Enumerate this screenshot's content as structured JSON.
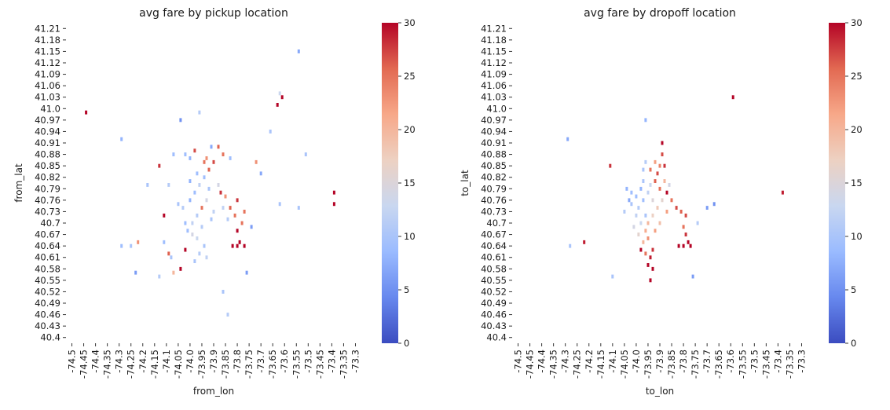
{
  "colors": {
    "scale": [
      "#3b4cc0",
      "#6788ee",
      "#9abbff",
      "#c9d7f0",
      "#edd1c2",
      "#f7a889",
      "#e26952",
      "#b40426"
    ]
  },
  "chart_data": [
    {
      "type": "heatmap",
      "title": "avg fare by pickup location",
      "xlabel": "from_lon",
      "ylabel": "from_lat",
      "x_ticks": [
        "-74.5",
        "-74.45",
        "-74.4",
        "-74.35",
        "-74.3",
        "-74.25",
        "-74.2",
        "-74.15",
        "-74.1",
        "-74.05",
        "-74.0",
        "-73.95",
        "-73.9",
        "-73.85",
        "-73.8",
        "-73.75",
        "-73.7",
        "-73.65",
        "-73.6",
        "-73.55",
        "-73.5",
        "-73.45",
        "-73.4",
        "-73.35",
        "-73.3"
      ],
      "y_ticks": [
        "41.21",
        "41.18",
        "41.15",
        "41.12",
        "41.09",
        "41.06",
        "41.03",
        "41.0",
        "40.97",
        "40.94",
        "40.91",
        "40.88",
        "40.85",
        "40.82",
        "40.79",
        "40.76",
        "40.73",
        "40.7",
        "40.67",
        "40.64",
        "40.61",
        "40.58",
        "40.55",
        "40.52",
        "40.49",
        "40.46",
        "40.43",
        "40.4"
      ],
      "colorbar": {
        "ticks": [
          "0",
          "5",
          "10",
          "15",
          "20",
          "25",
          "30"
        ],
        "range": [
          0,
          30
        ]
      },
      "cells": [
        [
          -74.44,
          40.99,
          30
        ],
        [
          -74.29,
          40.92,
          8
        ],
        [
          -74.04,
          40.97,
          5
        ],
        [
          -73.96,
          40.99,
          11
        ],
        [
          -73.98,
          40.89,
          27
        ],
        [
          -74.07,
          40.88,
          9
        ],
        [
          -73.91,
          40.9,
          7
        ],
        [
          -73.88,
          40.9,
          26
        ],
        [
          -73.86,
          40.88,
          25
        ],
        [
          -73.83,
          40.87,
          9
        ],
        [
          -74.18,
          40.8,
          10
        ],
        [
          -74.09,
          40.8,
          11
        ],
        [
          -74.02,
          40.88,
          9
        ],
        [
          -74.0,
          40.87,
          8
        ],
        [
          -74.13,
          40.85,
          28
        ],
        [
          -74.11,
          40.72,
          30
        ],
        [
          -73.72,
          40.86,
          23
        ],
        [
          -73.7,
          40.83,
          7
        ],
        [
          -73.66,
          40.94,
          10
        ],
        [
          -73.62,
          41.04,
          13
        ],
        [
          -73.61,
          41.03,
          30
        ],
        [
          -73.63,
          41.01,
          30
        ],
        [
          -73.54,
          41.15,
          7
        ],
        [
          -73.51,
          40.88,
          10
        ],
        [
          -73.39,
          40.78,
          30
        ],
        [
          -73.39,
          40.75,
          30
        ],
        [
          -73.54,
          40.74,
          10
        ],
        [
          -73.62,
          40.75,
          10
        ],
        [
          -73.77,
          40.73,
          25
        ],
        [
          -73.74,
          40.69,
          6
        ],
        [
          -73.83,
          40.74,
          26
        ],
        [
          -73.85,
          40.77,
          23
        ],
        [
          -73.8,
          40.76,
          28
        ],
        [
          -73.81,
          40.72,
          25
        ],
        [
          -73.8,
          40.68,
          30
        ],
        [
          -73.79,
          40.65,
          30
        ],
        [
          -73.77,
          40.64,
          30
        ],
        [
          -73.82,
          40.64,
          30
        ],
        [
          -73.8,
          40.64,
          30
        ],
        [
          -73.76,
          40.57,
          6
        ],
        [
          -74.29,
          40.64,
          9
        ],
        [
          -74.25,
          40.64,
          10
        ],
        [
          -74.22,
          40.65,
          23
        ],
        [
          -74.11,
          40.65,
          9
        ],
        [
          -74.09,
          40.62,
          26
        ],
        [
          -74.08,
          40.61,
          10
        ],
        [
          -74.02,
          40.63,
          30
        ],
        [
          -74.04,
          40.58,
          30
        ],
        [
          -74.07,
          40.57,
          20
        ],
        [
          -74.13,
          40.56,
          11
        ],
        [
          -74.23,
          40.57,
          6
        ],
        [
          -73.86,
          40.52,
          10
        ],
        [
          -73.84,
          40.46,
          11
        ],
        [
          -74.05,
          40.75,
          10
        ],
        [
          -74.03,
          40.74,
          11
        ],
        [
          -74.0,
          40.76,
          8
        ],
        [
          -73.98,
          40.78,
          9
        ],
        [
          -73.96,
          40.8,
          12
        ],
        [
          -73.94,
          40.82,
          9
        ],
        [
          -73.92,
          40.84,
          26
        ],
        [
          -73.9,
          40.86,
          27
        ],
        [
          -73.88,
          40.8,
          14
        ],
        [
          -73.87,
          40.78,
          28
        ],
        [
          -73.93,
          40.76,
          14
        ],
        [
          -73.95,
          40.74,
          25
        ],
        [
          -73.97,
          40.72,
          11
        ],
        [
          -73.99,
          40.7,
          12
        ],
        [
          -74.01,
          40.68,
          9
        ],
        [
          -73.97,
          40.66,
          13
        ],
        [
          -73.94,
          40.64,
          10
        ],
        [
          -73.99,
          40.67,
          14
        ],
        [
          -74.02,
          40.7,
          9
        ],
        [
          -73.95,
          40.69,
          11
        ],
        [
          -73.91,
          40.71,
          10
        ],
        [
          -73.9,
          40.73,
          12
        ],
        [
          -73.92,
          40.79,
          10
        ],
        [
          -73.97,
          40.83,
          9
        ],
        [
          -74.0,
          40.81,
          8
        ],
        [
          -73.94,
          40.86,
          25
        ],
        [
          -73.93,
          40.87,
          23
        ],
        [
          -73.86,
          40.74,
          12
        ],
        [
          -73.84,
          40.71,
          11
        ],
        [
          -73.78,
          40.7,
          25
        ],
        [
          -73.96,
          40.62,
          11
        ],
        [
          -73.93,
          40.61,
          12
        ],
        [
          -73.98,
          40.6,
          10
        ]
      ]
    },
    {
      "type": "heatmap",
      "title": "avg fare by dropoff location",
      "xlabel": "to_lon",
      "ylabel": "to_lat",
      "x_ticks": [
        "-74.5",
        "-74.45",
        "-74.4",
        "-74.35",
        "-74.3",
        "-74.25",
        "-74.2",
        "-74.15",
        "-74.1",
        "-74.05",
        "-74.0",
        "-73.95",
        "-73.9",
        "-73.85",
        "-73.8",
        "-73.75",
        "-73.7",
        "-73.65",
        "-73.6",
        "-73.55",
        "-73.5",
        "-73.45",
        "-73.4",
        "-73.35",
        "-73.3"
      ],
      "y_ticks": [
        "41.21",
        "41.18",
        "41.15",
        "41.12",
        "41.09",
        "41.06",
        "41.03",
        "41.0",
        "40.97",
        "40.94",
        "40.91",
        "40.88",
        "40.85",
        "40.82",
        "40.79",
        "40.76",
        "40.73",
        "40.7",
        "40.67",
        "40.64",
        "40.61",
        "40.58",
        "40.55",
        "40.52",
        "40.49",
        "40.46",
        "40.43",
        "40.4"
      ],
      "colorbar": {
        "ticks": [
          "0",
          "5",
          "10",
          "15",
          "20",
          "25",
          "30"
        ],
        "range": [
          0,
          30
        ]
      },
      "cells": [
        [
          -73.59,
          41.03,
          30
        ],
        [
          -73.96,
          40.97,
          8
        ],
        [
          -74.29,
          40.92,
          7
        ],
        [
          -73.89,
          40.91,
          30
        ],
        [
          -73.89,
          40.88,
          27
        ],
        [
          -73.88,
          40.85,
          28
        ],
        [
          -74.11,
          40.85,
          28
        ],
        [
          -74.22,
          40.65,
          29
        ],
        [
          -74.28,
          40.64,
          10
        ],
        [
          -74.1,
          40.56,
          10
        ],
        [
          -73.76,
          40.56,
          6
        ],
        [
          -73.7,
          40.74,
          6
        ],
        [
          -73.67,
          40.75,
          5
        ],
        [
          -73.79,
          40.72,
          27
        ],
        [
          -73.74,
          40.7,
          11
        ],
        [
          -73.38,
          40.78,
          29
        ],
        [
          -73.87,
          40.78,
          30
        ],
        [
          -73.85,
          40.76,
          25
        ],
        [
          -73.83,
          40.74,
          27
        ],
        [
          -73.81,
          40.73,
          26
        ],
        [
          -73.8,
          40.69,
          25
        ],
        [
          -73.79,
          40.67,
          28
        ],
        [
          -73.78,
          40.65,
          30
        ],
        [
          -73.8,
          40.64,
          30
        ],
        [
          -73.77,
          40.64,
          30
        ],
        [
          -73.82,
          40.64,
          30
        ],
        [
          -73.93,
          40.63,
          28
        ],
        [
          -73.94,
          40.61,
          29
        ],
        [
          -73.95,
          40.59,
          30
        ],
        [
          -73.96,
          40.62,
          25
        ],
        [
          -73.98,
          40.63,
          30
        ],
        [
          -73.93,
          40.58,
          30
        ],
        [
          -73.94,
          40.55,
          30
        ],
        [
          -73.92,
          40.81,
          26
        ],
        [
          -73.91,
          40.83,
          27
        ],
        [
          -73.9,
          40.85,
          24
        ],
        [
          -73.92,
          40.86,
          22
        ],
        [
          -73.94,
          40.84,
          25
        ],
        [
          -73.9,
          40.79,
          25
        ],
        [
          -73.88,
          40.81,
          20
        ],
        [
          -73.86,
          40.8,
          14
        ],
        [
          -74.02,
          40.75,
          10
        ],
        [
          -74.0,
          40.77,
          9
        ],
        [
          -73.98,
          40.79,
          8
        ],
        [
          -73.97,
          40.81,
          10
        ],
        [
          -73.99,
          40.74,
          11
        ],
        [
          -74.0,
          40.72,
          12
        ],
        [
          -73.98,
          40.7,
          13
        ],
        [
          -73.96,
          40.72,
          10
        ],
        [
          -73.97,
          40.76,
          9
        ],
        [
          -73.95,
          40.78,
          12
        ],
        [
          -73.94,
          40.8,
          13
        ],
        [
          -73.93,
          40.76,
          15
        ],
        [
          -73.91,
          40.74,
          18
        ],
        [
          -73.96,
          40.68,
          21
        ],
        [
          -73.99,
          40.67,
          16
        ],
        [
          -74.01,
          40.69,
          14
        ],
        [
          -73.97,
          40.65,
          20
        ],
        [
          -73.95,
          40.66,
          23
        ],
        [
          -73.92,
          40.68,
          22
        ],
        [
          -73.9,
          40.7,
          19
        ],
        [
          -74.02,
          40.78,
          9
        ],
        [
          -74.04,
          40.79,
          8
        ],
        [
          -74.03,
          40.76,
          7
        ],
        [
          -73.96,
          40.86,
          11
        ],
        [
          -73.97,
          40.84,
          10
        ],
        [
          -74.05,
          40.73,
          11
        ],
        [
          -73.89,
          40.76,
          16
        ],
        [
          -73.87,
          40.73,
          22
        ],
        [
          -73.93,
          40.72,
          17
        ],
        [
          -73.95,
          40.7,
          20
        ]
      ]
    }
  ]
}
